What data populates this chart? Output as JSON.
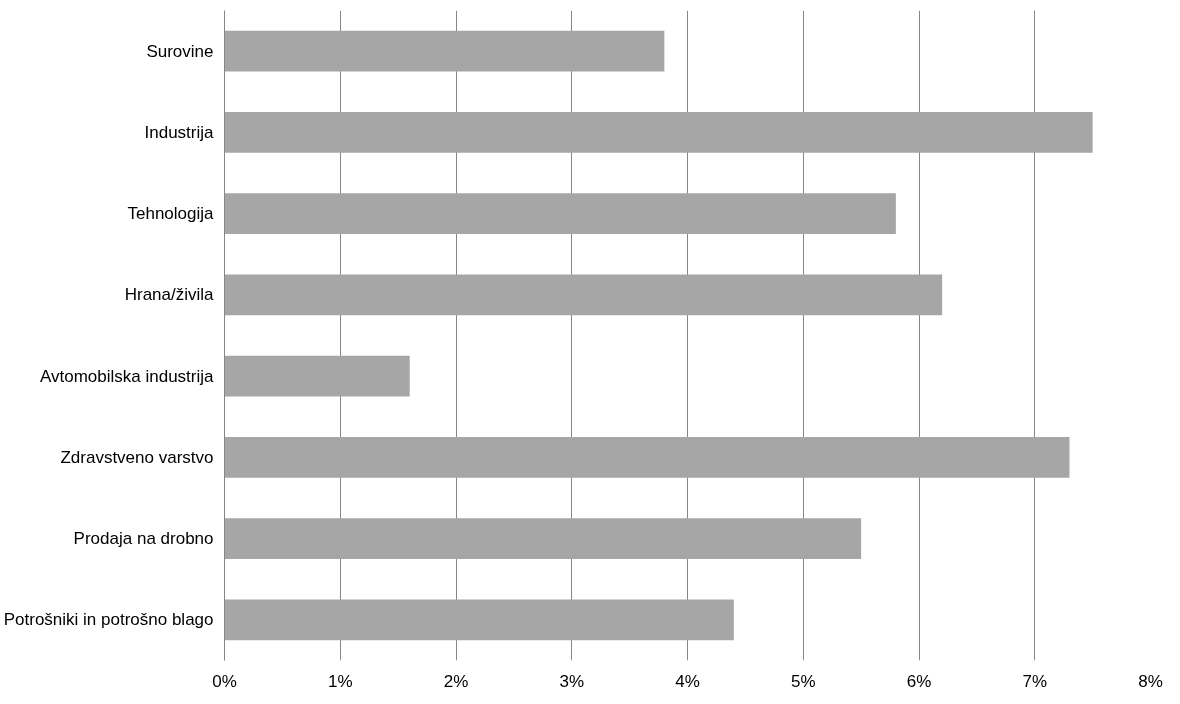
{
  "chart_data": {
    "type": "bar",
    "orientation": "horizontal",
    "categories": [
      "Surovine",
      "Industrija",
      "Tehnologija",
      "Hrana/živila",
      "Avtomobilska industrija",
      "Zdravstveno varstvo",
      "Prodaja na drobno",
      "Potrošniki in potrošno blago"
    ],
    "values": [
      3.8,
      7.5,
      5.8,
      6.2,
      1.6,
      7.3,
      5.5,
      4.4
    ],
    "color": "#a6a6a6",
    "xlim": [
      0,
      8
    ],
    "xticks": [
      {
        "value": 0,
        "label": "0%"
      },
      {
        "value": 1,
        "label": "1%"
      },
      {
        "value": 2,
        "label": "2%"
      },
      {
        "value": 3,
        "label": "3%"
      },
      {
        "value": 4,
        "label": "4%"
      },
      {
        "value": 5,
        "label": "5%"
      },
      {
        "value": 6,
        "label": "6%"
      },
      {
        "value": 7,
        "label": "7%"
      },
      {
        "value": 8,
        "label": "8%"
      }
    ],
    "grid": "x"
  }
}
